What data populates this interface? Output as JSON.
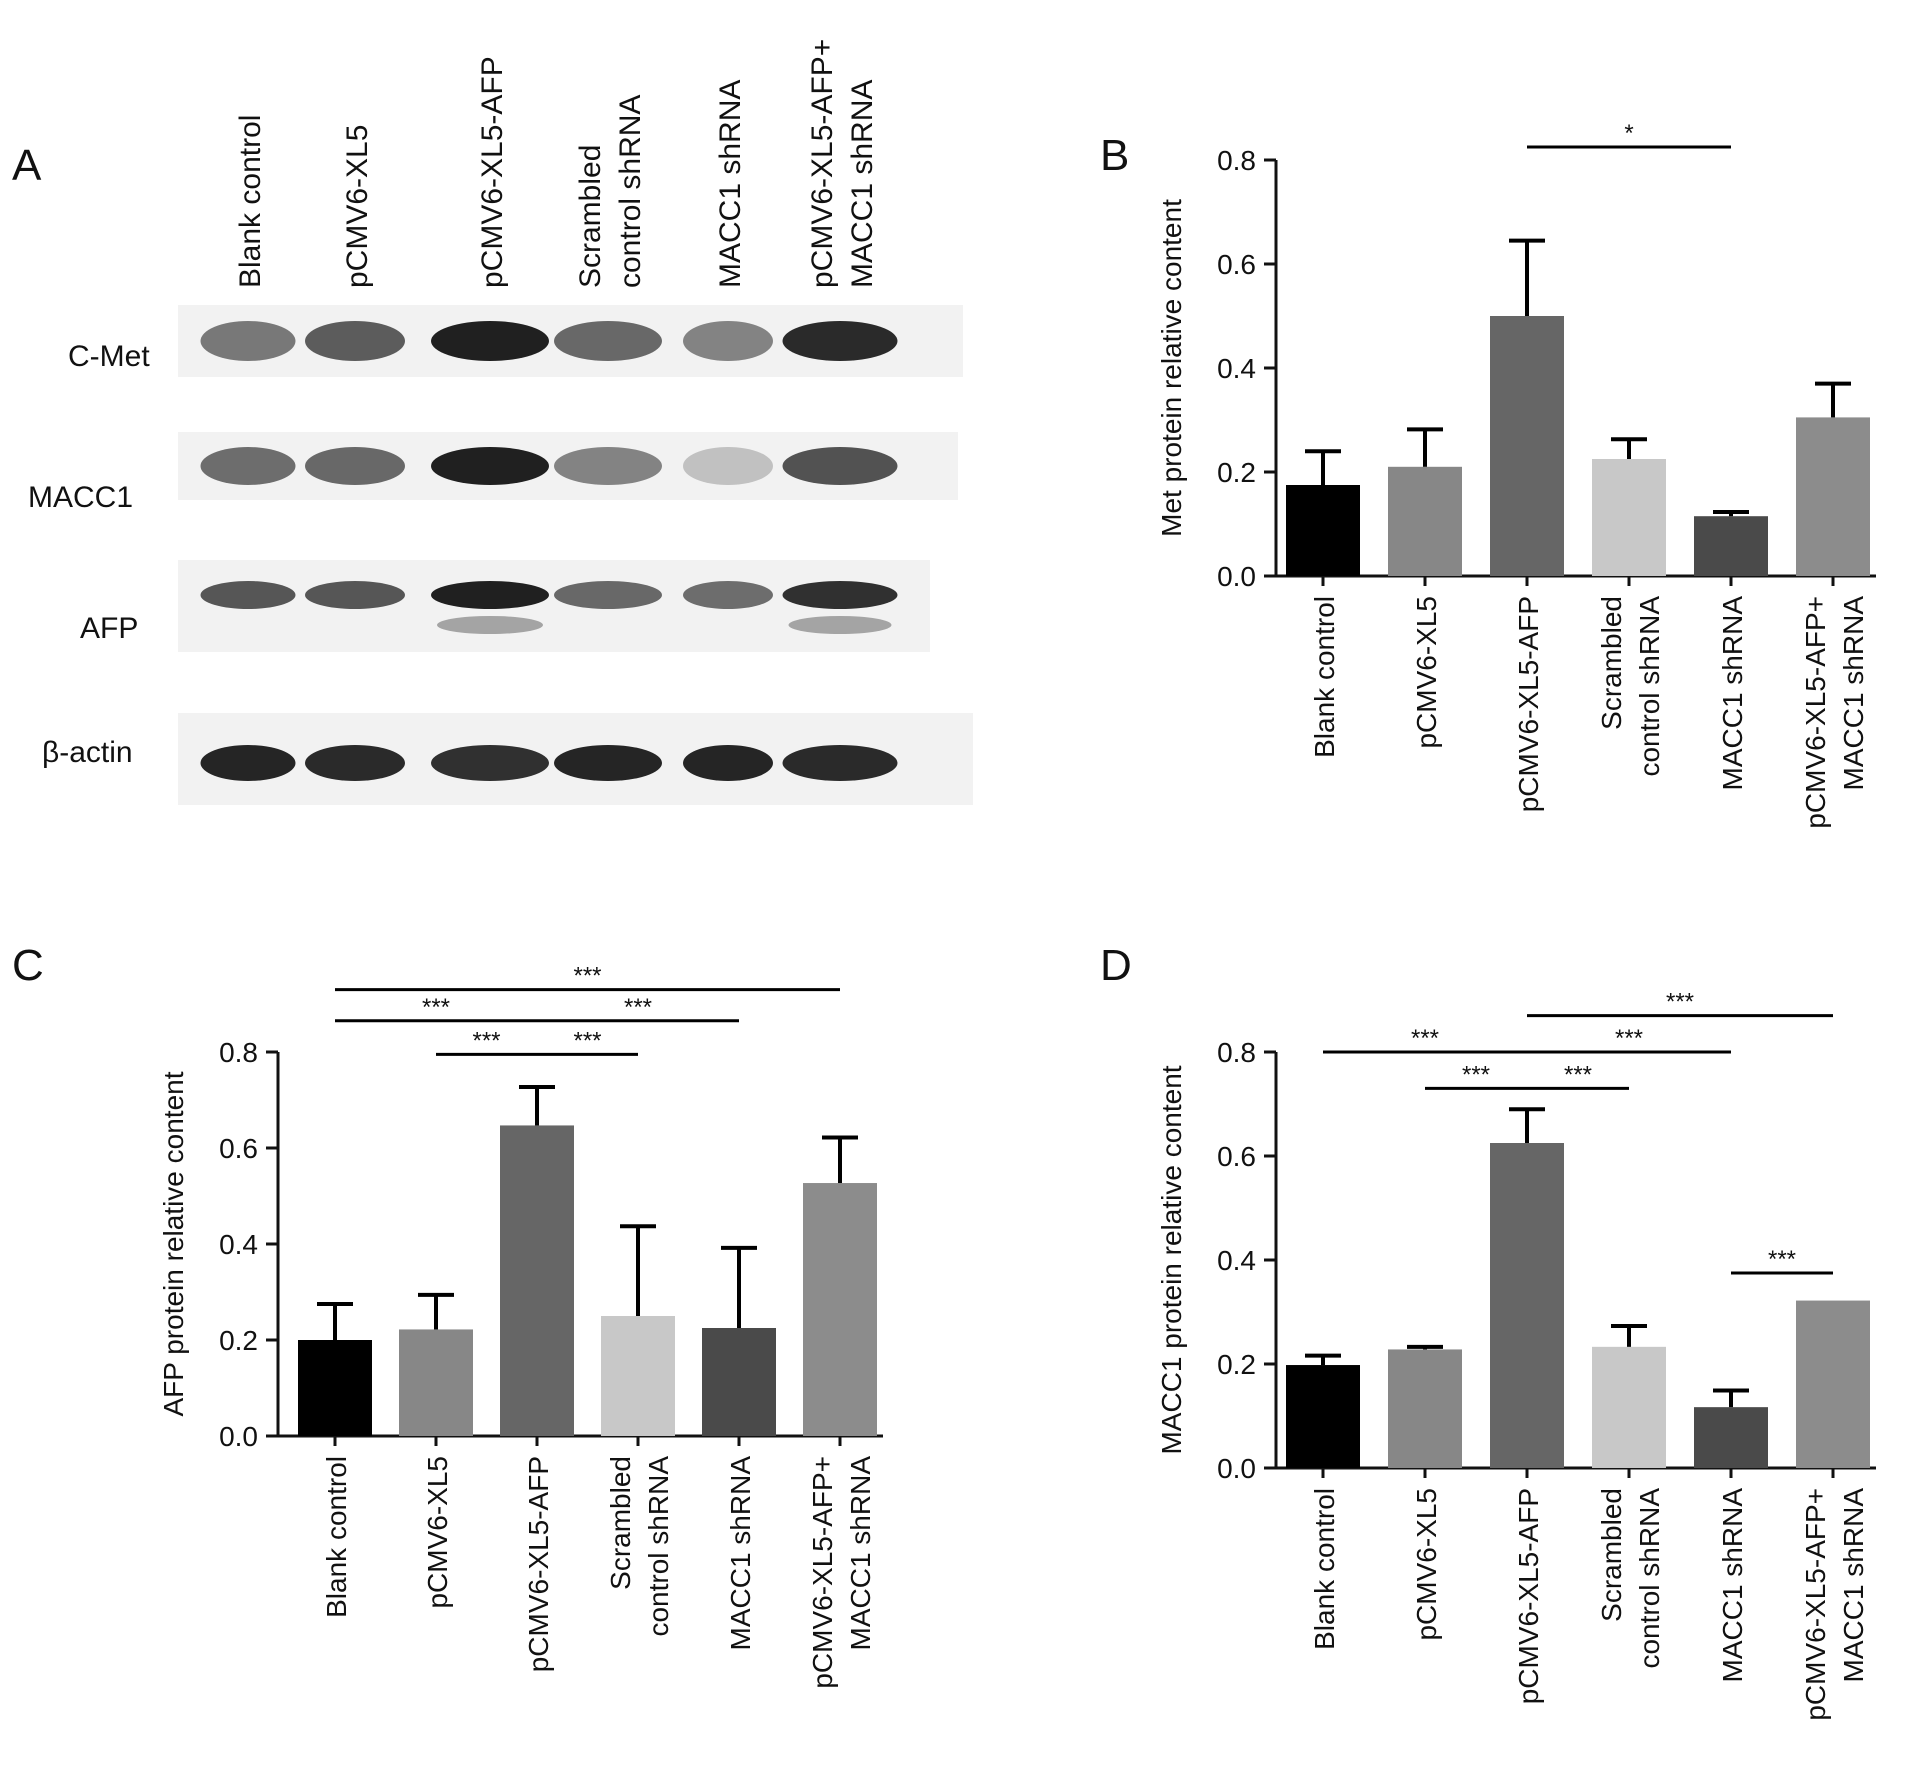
{
  "panels": [
    {
      "letter": "A"
    },
    {
      "letter": "B"
    },
    {
      "letter": "C"
    },
    {
      "letter": "D"
    }
  ],
  "blot": {
    "lanes": [
      {
        "label": [
          "Blank control"
        ]
      },
      {
        "label": [
          "pCMV6-XL5"
        ]
      },
      {
        "label": [
          "pCMV6-XL5-AFP"
        ]
      },
      {
        "label": [
          "Scrambled",
          "control shRNA"
        ]
      },
      {
        "label": [
          "MACC1 shRNA"
        ]
      },
      {
        "label": [
          "pCMV6-XL5-AFP+",
          "MACC1 shRNA"
        ]
      }
    ],
    "rows": [
      {
        "label": "C-Met",
        "intensity": [
          0.55,
          0.68,
          0.95,
          0.62,
          0.5,
          0.9
        ]
      },
      {
        "label": "MACC1",
        "intensity": [
          0.6,
          0.62,
          0.95,
          0.5,
          0.22,
          0.72
        ]
      },
      {
        "label": "AFP",
        "intensity": [
          0.7,
          0.7,
          0.95,
          0.62,
          0.6,
          0.88
        ]
      },
      {
        "label": "β-actin",
        "intensity": [
          0.92,
          0.9,
          0.88,
          0.92,
          0.92,
          0.9
        ]
      }
    ],
    "colors": {
      "band": "#141414",
      "membrane": "#f2f2f2"
    }
  },
  "chart_data": [
    {
      "panel": "B",
      "type": "bar",
      "categories": [
        [
          "Blank control"
        ],
        [
          "pCMV6-XL5"
        ],
        [
          "pCMV6-XL5-AFP"
        ],
        [
          "Scrambled",
          "control shRNA"
        ],
        [
          "MACC1 shRNA"
        ],
        [
          "pCMV6-XL5-AFP+",
          "MACC1 shRNA"
        ]
      ],
      "values": [
        0.175,
        0.21,
        0.5,
        0.225,
        0.115,
        0.305
      ],
      "errors": [
        0.065,
        0.072,
        0.145,
        0.038,
        0.008,
        0.065
      ],
      "ylabel": "Met protein relative content",
      "ylim": [
        0,
        0.8
      ],
      "yticks": [
        "0.0",
        "0.2",
        "0.4",
        "0.6",
        "0.8"
      ],
      "colors": [
        "#000000",
        "#878787",
        "#666666",
        "#c8c8c8",
        "#4a4a4a",
        "#8c8c8c"
      ],
      "significance": [
        {
          "from": 2,
          "to": 4,
          "label": "*",
          "y": 0.825
        }
      ]
    },
    {
      "panel": "C",
      "type": "bar",
      "categories": [
        [
          "Blank control"
        ],
        [
          "pCMV6-XL5"
        ],
        [
          "pCMV6-XL5-AFP"
        ],
        [
          "Scrambled",
          "control shRNA"
        ],
        [
          "MACC1 shRNA"
        ],
        [
          "pCMV6-XL5-AFP+",
          "MACC1 shRNA"
        ]
      ],
      "values": [
        0.2,
        0.222,
        0.647,
        0.25,
        0.225,
        0.527
      ],
      "errors": [
        0.075,
        0.072,
        0.08,
        0.187,
        0.167,
        0.095
      ],
      "ylabel": "AFP protein relative content",
      "ylim": [
        0,
        0.8
      ],
      "yticks": [
        "0.0",
        "0.2",
        "0.4",
        "0.6",
        "0.8"
      ],
      "colors": [
        "#000000",
        "#878787",
        "#666666",
        "#c8c8c8",
        "#4a4a4a",
        "#8c8c8c"
      ],
      "significance": [
        {
          "from": 0,
          "to": 5,
          "label": "***",
          "y": 0.93
        },
        {
          "from": 0,
          "to": 2,
          "label": "***",
          "y": 0.865
        },
        {
          "from": 2,
          "to": 4,
          "label": "***",
          "y": 0.865
        },
        {
          "from": 1,
          "to": 2,
          "label": "***",
          "y": 0.795
        },
        {
          "from": 2,
          "to": 3,
          "label": "***",
          "y": 0.795
        }
      ]
    },
    {
      "panel": "D",
      "type": "bar",
      "categories": [
        [
          "Blank control"
        ],
        [
          "pCMV6-XL5"
        ],
        [
          "pCMV6-XL5-AFP"
        ],
        [
          "Scrambled",
          "control shRNA"
        ],
        [
          "MACC1 shRNA"
        ],
        [
          "pCMV6-XL5-AFP+",
          "MACC1 shRNA"
        ]
      ],
      "values": [
        0.198,
        0.228,
        0.625,
        0.233,
        0.117,
        0.322
      ],
      "errors": [
        0.018,
        0.005,
        0.065,
        0.04,
        0.032,
        0
      ],
      "ylabel": "MACC1 protein relative content",
      "ylim": [
        0,
        0.8
      ],
      "yticks": [
        "0.0",
        "0.2",
        "0.4",
        "0.6",
        "0.8"
      ],
      "colors": [
        "#000000",
        "#878787",
        "#666666",
        "#c8c8c8",
        "#4a4a4a",
        "#8c8c8c"
      ],
      "significance": [
        {
          "from": 2,
          "to": 5,
          "label": "***",
          "y": 0.87
        },
        {
          "from": 0,
          "to": 2,
          "label": "***",
          "y": 0.8
        },
        {
          "from": 2,
          "to": 4,
          "label": "***",
          "y": 0.8
        },
        {
          "from": 1,
          "to": 2,
          "label": "***",
          "y": 0.73
        },
        {
          "from": 2,
          "to": 3,
          "label": "***",
          "y": 0.73
        },
        {
          "from": 4,
          "to": 5,
          "label": "***",
          "y": 0.375
        }
      ]
    }
  ]
}
